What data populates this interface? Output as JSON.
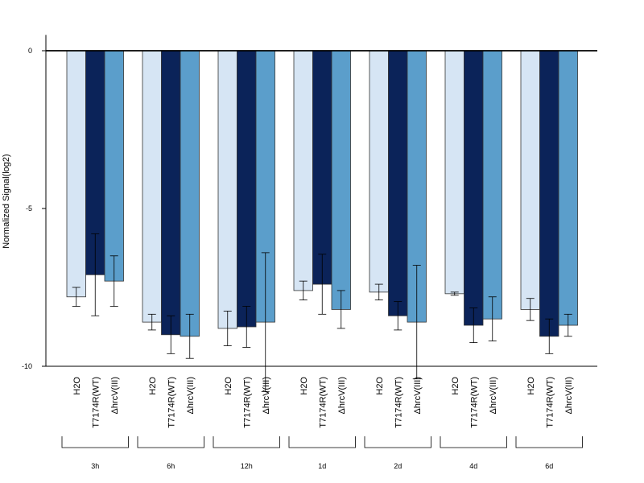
{
  "chart_data": {
    "type": "bar",
    "title": "",
    "xlabel": "",
    "ylabel": "Normalized Signal(log2)",
    "ylim": [
      -10,
      0.5
    ],
    "yticks": [
      0,
      -5,
      -10
    ],
    "grid": false,
    "legend": "none",
    "colors": [
      "#d6e5f4",
      "#0b2359",
      "#5b9ecb"
    ],
    "series_labels": [
      "H2O",
      "T7174R(WT)",
      "ΔhrcV(III)"
    ],
    "groups": [
      {
        "label": "3h",
        "values": [
          -7.8,
          -7.1,
          -7.3
        ],
        "errors": [
          0.3,
          1.3,
          0.8
        ]
      },
      {
        "label": "6h",
        "values": [
          -8.6,
          -9.0,
          -9.05
        ],
        "errors": [
          0.25,
          0.6,
          0.7
        ]
      },
      {
        "label": "12h",
        "values": [
          -8.8,
          -8.75,
          -8.6
        ],
        "errors": [
          0.55,
          0.65,
          2.2
        ]
      },
      {
        "label": "1d",
        "values": [
          -7.6,
          -7.4,
          -8.2
        ],
        "errors": [
          0.3,
          0.95,
          0.6
        ]
      },
      {
        "label": "2d",
        "values": [
          -7.65,
          -8.4,
          -8.6
        ],
        "errors": [
          0.25,
          0.45,
          1.8
        ]
      },
      {
        "label": "4d",
        "values": [
          -7.7,
          -8.7,
          -8.5
        ],
        "errors": [
          0.05,
          0.55,
          0.7
        ]
      },
      {
        "label": "6d",
        "values": [
          -8.2,
          -9.05,
          -8.7
        ],
        "errors": [
          0.35,
          0.55,
          0.35
        ]
      }
    ]
  }
}
